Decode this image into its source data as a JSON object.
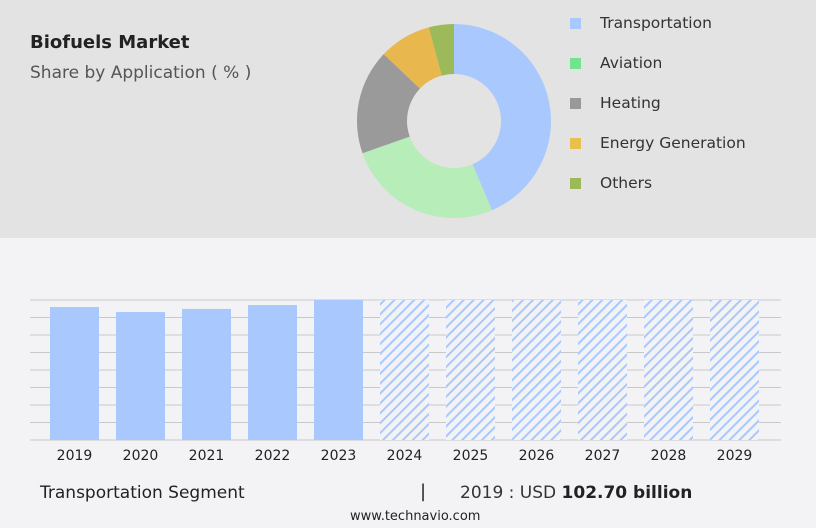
{
  "title": "Biofuels Market",
  "subtitle": "Share by Application ( % )",
  "chart_data": [
    {
      "type": "pie",
      "donut": true,
      "categories": [
        "Transportation",
        "Aviation",
        "Heating",
        "Energy Generation",
        "Others"
      ],
      "values": [
        43.6,
        26,
        17.5,
        8.7,
        4.2
      ],
      "colors": [
        "#a8c8fe",
        "#b6edb8",
        "#9a9a9a",
        "#e8b84f",
        "#9cba5a"
      ],
      "legend_colors": [
        "#a8c8fe",
        "#6ee58e",
        "#999999",
        "#e8c04f",
        "#9cba5a"
      ],
      "legend_placement": "right"
    },
    {
      "type": "bar",
      "categories": [
        "2019",
        "2020",
        "2021",
        "2022",
        "2023",
        "2024",
        "2025",
        "2026",
        "2027",
        "2028",
        "2029"
      ],
      "values": [
        102.7,
        98.8,
        101.2,
        104.2,
        108.1,
        null,
        null,
        null,
        null,
        null,
        null
      ],
      "forecast": [
        "2024",
        "2025",
        "2026",
        "2027",
        "2028",
        "2029"
      ],
      "bar_color": "#a8c8fe",
      "ylim": [
        0,
        108.1
      ],
      "grid": true
    }
  ],
  "footer": {
    "segment": "Transportation Segment",
    "separator": "|",
    "year_label": "2019 : USD",
    "value": "102.70 billion",
    "site": "www.technavio.com"
  }
}
